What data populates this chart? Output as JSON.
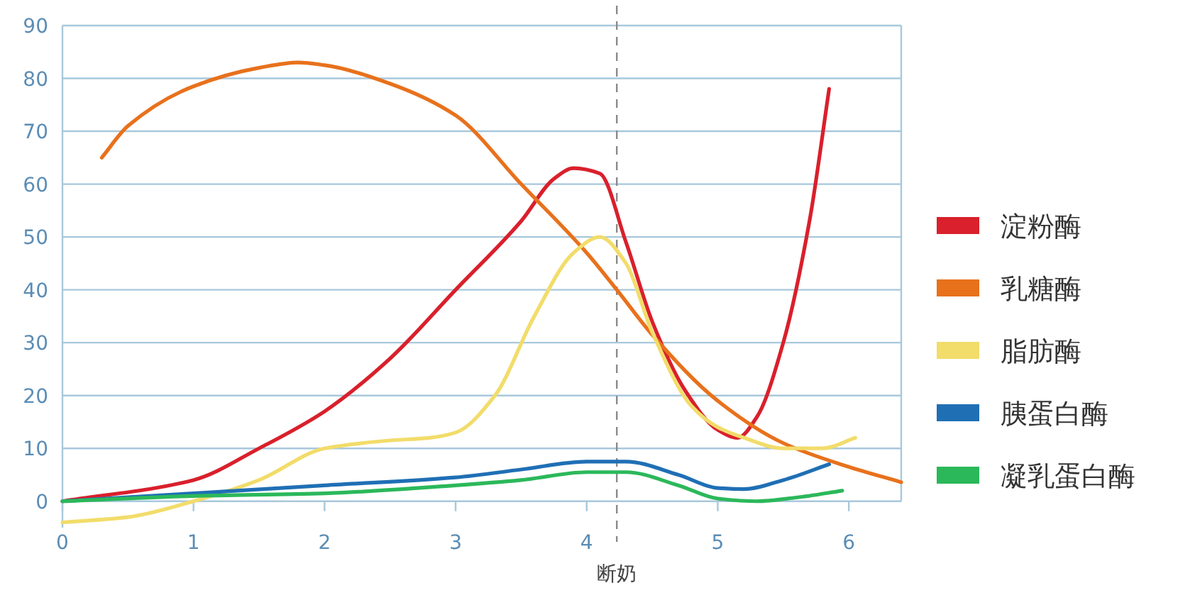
{
  "chart_data": {
    "type": "line",
    "xlim": [
      0,
      6.4
    ],
    "ylim": [
      -5,
      90
    ],
    "xticks": [
      0,
      1,
      2,
      3,
      4,
      5,
      6
    ],
    "yticks": [
      0,
      10,
      20,
      30,
      40,
      50,
      60,
      70,
      80,
      90
    ],
    "grid": "y",
    "legend": "right",
    "marker": "none",
    "line_style": "solid",
    "ref_lines": [
      {
        "axis": "x",
        "value": 4.23,
        "label": "断奶",
        "color": "#8a8a8a",
        "line_style": "dashed"
      }
    ],
    "series": [
      {
        "name": "淀粉酶",
        "color": "#d9202c",
        "x": [
          0,
          1,
          1.5,
          2,
          2.5,
          3,
          3.5,
          3.75,
          3.9,
          4.1,
          4.3,
          4.5,
          4.75,
          5,
          5.15,
          5.3,
          5.5,
          5.7,
          5.85
        ],
        "values": [
          0,
          4,
          10,
          17,
          27,
          40,
          53,
          61,
          63,
          62,
          49,
          34,
          21,
          13.5,
          12,
          16,
          30,
          53,
          78
        ]
      },
      {
        "name": "乳糖酶",
        "color": "#e8711c",
        "x": [
          0.3,
          0.5,
          1,
          1.5,
          1.8,
          2,
          2.5,
          3,
          3.5,
          4,
          4.23,
          4.5,
          5,
          5.5,
          6,
          6.4
        ],
        "values": [
          65,
          71,
          78.5,
          82,
          83,
          82.5,
          79,
          73,
          60,
          47,
          40,
          31.5,
          19,
          11,
          6.5,
          3.6
        ]
      },
      {
        "name": "脂肪酶",
        "color": "#f2dc6a",
        "x": [
          0,
          0.5,
          1,
          1.5,
          2,
          2.5,
          2.8,
          3,
          3.3,
          3.6,
          3.9,
          4.1,
          4.3,
          4.5,
          4.8,
          5,
          5.2,
          5.5,
          5.8,
          6.05
        ],
        "values": [
          -4,
          -3,
          0,
          4,
          10,
          11.5,
          12,
          13,
          20,
          35,
          47,
          50,
          45,
          32,
          18,
          14,
          12,
          10,
          10,
          12
        ]
      },
      {
        "name": "胰蛋白酶",
        "color": "#1f6fb5",
        "x": [
          0,
          1,
          2,
          3,
          3.5,
          4,
          4.3,
          4.7,
          5,
          5.2,
          5.5,
          5.85
        ],
        "values": [
          0,
          1.5,
          3,
          4.5,
          6,
          7.5,
          7.5,
          5,
          2.5,
          2.3,
          4,
          7
        ]
      },
      {
        "name": "凝乳蛋白酶",
        "color": "#2bb85a",
        "x": [
          0,
          1,
          2,
          3,
          3.5,
          4,
          4.3,
          4.7,
          5,
          5.3,
          5.6,
          5.95
        ],
        "values": [
          0,
          1,
          1.5,
          3,
          4,
          5.5,
          5.5,
          3,
          0.5,
          0,
          0.7,
          2
        ]
      }
    ]
  }
}
